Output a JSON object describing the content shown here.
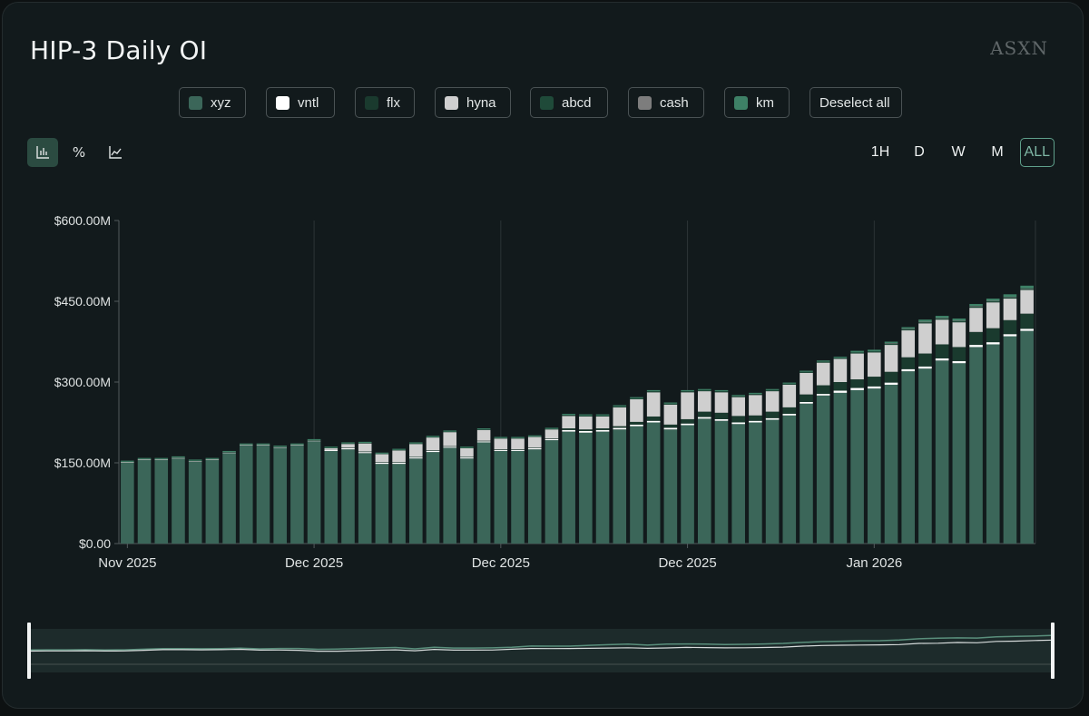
{
  "title": "HIP-3 Daily OI",
  "brand": "ASXN",
  "legend": [
    {
      "label": "xyz",
      "color": "#3b6659"
    },
    {
      "label": "vntl",
      "color": "#ffffff"
    },
    {
      "label": "flx",
      "color": "#1a3a2e"
    },
    {
      "label": "hyna",
      "color": "#cfcfcf"
    },
    {
      "label": "abcd",
      "color": "#1f4a39"
    },
    {
      "label": "cash",
      "color": "#7d7d7d"
    },
    {
      "label": "km",
      "color": "#3e8066"
    }
  ],
  "deselect_label": "Deselect all",
  "view_tools": [
    {
      "name": "bar-chart-icon",
      "glyph": "bar",
      "active": true
    },
    {
      "name": "percent-icon",
      "glyph": "%",
      "active": false
    },
    {
      "name": "line-chart-icon",
      "glyph": "line",
      "active": false
    }
  ],
  "ranges": [
    {
      "label": "1H",
      "active": false
    },
    {
      "label": "D",
      "active": false
    },
    {
      "label": "W",
      "active": false
    },
    {
      "label": "M",
      "active": false
    },
    {
      "label": "ALL",
      "active": true
    }
  ],
  "chart_data": {
    "type": "bar",
    "stacked": true,
    "title": "HIP-3 Daily OI",
    "ylabel": "",
    "xlabel": "",
    "ylim": [
      0,
      600
    ],
    "yticks": [
      0,
      150,
      300,
      450,
      600
    ],
    "ytick_labels": [
      "$0.00",
      "$150.00M",
      "$300.00M",
      "$450.00M",
      "$600.00M"
    ],
    "xtick_labels": [
      "Nov 2025",
      "Dec 2025",
      "Dec 2025",
      "Dec 2025",
      "Jan 2026"
    ],
    "xtick_bar_index": [
      0,
      11,
      22,
      33,
      44
    ],
    "grid": "vertical",
    "series": [
      {
        "name": "xyz",
        "color": "#3b6659",
        "values": [
          150,
          155,
          155,
          158,
          152,
          155,
          168,
          182,
          182,
          178,
          182,
          190,
          172,
          175,
          168,
          148,
          148,
          158,
          170,
          178,
          158,
          188,
          172,
          172,
          175,
          192,
          208,
          206,
          208,
          212,
          218,
          225,
          212,
          220,
          232,
          228,
          222,
          225,
          230,
          238,
          260,
          275,
          280,
          285,
          288,
          295,
          320,
          325,
          340,
          335,
          365,
          370,
          385,
          395
        ]
      },
      {
        "name": "vntl",
        "color": "#ffffff",
        "values": [
          1,
          1,
          1,
          1,
          1,
          1,
          1,
          1,
          1,
          1,
          1,
          1,
          2,
          2,
          2,
          2,
          2,
          2,
          2,
          2,
          2,
          2,
          2,
          2,
          2,
          2,
          3,
          3,
          3,
          3,
          3,
          3,
          3,
          3,
          3,
          3,
          3,
          3,
          3,
          3,
          3,
          3,
          4,
          4,
          4,
          4,
          4,
          4,
          4,
          4,
          4,
          4,
          4,
          4
        ]
      },
      {
        "name": "flx",
        "color": "#1a3a2e",
        "values": [
          0,
          0,
          0,
          0,
          0,
          0,
          0,
          0,
          0,
          0,
          0,
          0,
          0,
          1,
          1,
          1,
          1,
          1,
          1,
          1,
          1,
          1,
          1,
          1,
          1,
          1,
          3,
          3,
          3,
          3,
          5,
          8,
          6,
          8,
          10,
          12,
          12,
          10,
          12,
          12,
          14,
          16,
          16,
          16,
          18,
          20,
          22,
          24,
          26,
          26,
          24,
          26,
          26,
          28
        ]
      },
      {
        "name": "hyna",
        "color": "#cfcfcf",
        "values": [
          0,
          0,
          0,
          0,
          0,
          0,
          0,
          0,
          0,
          0,
          0,
          0,
          3,
          7,
          15,
          15,
          22,
          24,
          24,
          26,
          16,
          20,
          20,
          20,
          20,
          17,
          23,
          24,
          22,
          35,
          42,
          45,
          37,
          50,
          38,
          38,
          35,
          38,
          38,
          42,
          40,
          42,
          43,
          48,
          45,
          50,
          50,
          56,
          46,
          46,
          45,
          48,
          40,
          44
        ]
      },
      {
        "name": "abcd",
        "color": "#1f4a39",
        "values": [
          1,
          1,
          1,
          1,
          1,
          1,
          1,
          1,
          1,
          1,
          1,
          1,
          1,
          1,
          1,
          1,
          1,
          1,
          1,
          1,
          1,
          1,
          1,
          1,
          1,
          1,
          2,
          2,
          2,
          2,
          2,
          2,
          2,
          2,
          2,
          2,
          2,
          2,
          2,
          2,
          2,
          2,
          2,
          2,
          2,
          2,
          2,
          2,
          2,
          2,
          2,
          2,
          2,
          2
        ]
      },
      {
        "name": "cash",
        "color": "#7d7d7d",
        "values": [
          0,
          0,
          0,
          0,
          0,
          0,
          0,
          0,
          0,
          0,
          0,
          0,
          0,
          0,
          0,
          0,
          0,
          0,
          0,
          0,
          0,
          0,
          0,
          0,
          0,
          0,
          0,
          0,
          0,
          0,
          0,
          0,
          0,
          0,
          0,
          0,
          0,
          0,
          0,
          0,
          0,
          0,
          0,
          0,
          0,
          1,
          1,
          1,
          1,
          1,
          1,
          1,
          1,
          1
        ]
      },
      {
        "name": "km",
        "color": "#3e8066",
        "values": [
          2,
          2,
          2,
          2,
          2,
          2,
          2,
          2,
          2,
          2,
          2,
          2,
          2,
          2,
          2,
          2,
          2,
          2,
          2,
          2,
          2,
          2,
          2,
          2,
          2,
          2,
          2,
          2,
          2,
          2,
          2,
          2,
          2,
          2,
          2,
          2,
          2,
          2,
          2,
          2,
          2,
          2,
          2,
          3,
          3,
          3,
          3,
          4,
          4,
          4,
          4,
          4,
          5,
          5
        ]
      }
    ]
  }
}
